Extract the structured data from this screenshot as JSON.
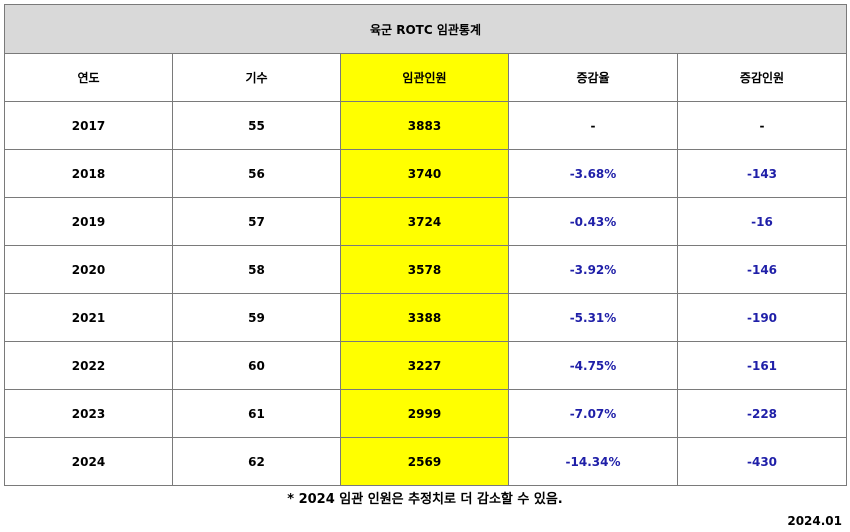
{
  "table": {
    "title": "육군 ROTC 임관통계",
    "headers": [
      "연도",
      "기수",
      "임관인원",
      "증감율",
      "증감인원"
    ],
    "rows": [
      {
        "year": "2017",
        "class": "55",
        "commissioned": "3883",
        "rate": "-",
        "change": "-"
      },
      {
        "year": "2018",
        "class": "56",
        "commissioned": "3740",
        "rate": "-3.68%",
        "change": "-143"
      },
      {
        "year": "2019",
        "class": "57",
        "commissioned": "3724",
        "rate": "-0.43%",
        "change": "-16"
      },
      {
        "year": "2020",
        "class": "58",
        "commissioned": "3578",
        "rate": "-3.92%",
        "change": "-146"
      },
      {
        "year": "2021",
        "class": "59",
        "commissioned": "3388",
        "rate": "-5.31%",
        "change": "-190"
      },
      {
        "year": "2022",
        "class": "60",
        "commissioned": "3227",
        "rate": "-4.75%",
        "change": "-161"
      },
      {
        "year": "2023",
        "class": "61",
        "commissioned": "2999",
        "rate": "-7.07%",
        "change": "-228"
      },
      {
        "year": "2024",
        "class": "62",
        "commissioned": "2569",
        "rate": "-14.34%",
        "change": "-430"
      }
    ]
  },
  "footnote": "* 2024 임관 인원은 추정치로 더 감소할 수 있음.",
  "date": "2024.01",
  "colors": {
    "highlight": "#ffff00",
    "negative_text": "#1f1fa8",
    "title_bg": "#d9d9d9",
    "border": "#7a7a7a"
  }
}
